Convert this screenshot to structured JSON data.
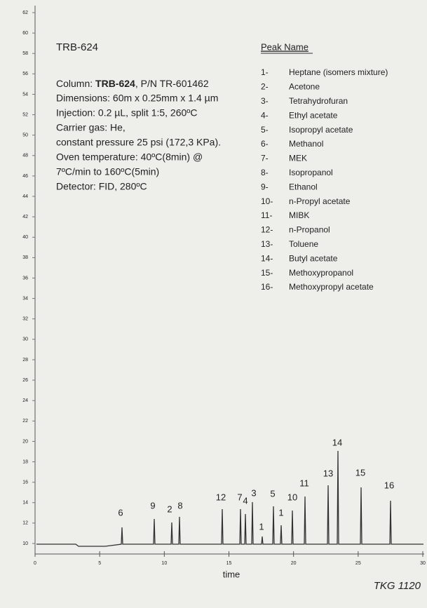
{
  "header": {
    "title": "TRB-624"
  },
  "method": {
    "column_prefix": "Column:",
    "column_name": "TRB-624",
    "column_suffix": ", P/N TR-601462",
    "lines": [
      "Dimensions: 60m x 0.25mm x 1.4 µm",
      "Injection: 0.2 µL, split 1:5, 260ºC",
      "Carrier gas: He,",
      "constant pressure 25 psi (172,3 KPa).",
      "Oven temperature: 40ºC(8min) @",
      "7ºC/min to 160ºC(5min)",
      "Detector: FID, 280ºC"
    ]
  },
  "peaks": {
    "heading": "Peak Name",
    "items": [
      [
        "1-",
        "Heptane (isomers mixture)"
      ],
      [
        "2-",
        "Acetone"
      ],
      [
        "3-",
        "Tetrahydrofuran"
      ],
      [
        "4-",
        "Ethyl acetate"
      ],
      [
        "5-",
        "Isopropyl acetate"
      ],
      [
        "6-",
        "Methanol"
      ],
      [
        "7-",
        "MEK"
      ],
      [
        "8-",
        "Isopropanol"
      ],
      [
        "9-",
        "Ethanol"
      ],
      [
        "10-",
        "n-Propyl acetate"
      ],
      [
        "11-",
        "MIBK"
      ],
      [
        "12-",
        "n-Propanol"
      ],
      [
        "13-",
        "Toluene"
      ],
      [
        "14-",
        "Butyl acetate"
      ],
      [
        "15-",
        "Methoxypropanol"
      ],
      [
        "16-",
        "Methoxypropyl acetate"
      ]
    ]
  },
  "chromatogram": {
    "yticks": [
      10,
      12,
      14,
      16,
      18,
      20,
      22,
      24,
      26,
      28,
      30,
      32,
      34,
      36,
      38,
      40,
      42,
      44,
      46,
      48,
      50,
      52,
      54,
      56,
      58,
      60,
      62
    ],
    "xticks": [
      0,
      5,
      10,
      15,
      20,
      25,
      30
    ],
    "xlabel": "time",
    "peak_labels": [
      "6",
      "9",
      "2",
      "8",
      "12",
      "7",
      "4",
      "3",
      "1",
      "5",
      "1",
      "10",
      "11",
      "13",
      "14",
      "15",
      "16"
    ]
  },
  "footer": {
    "code": "TKG 1120"
  }
}
